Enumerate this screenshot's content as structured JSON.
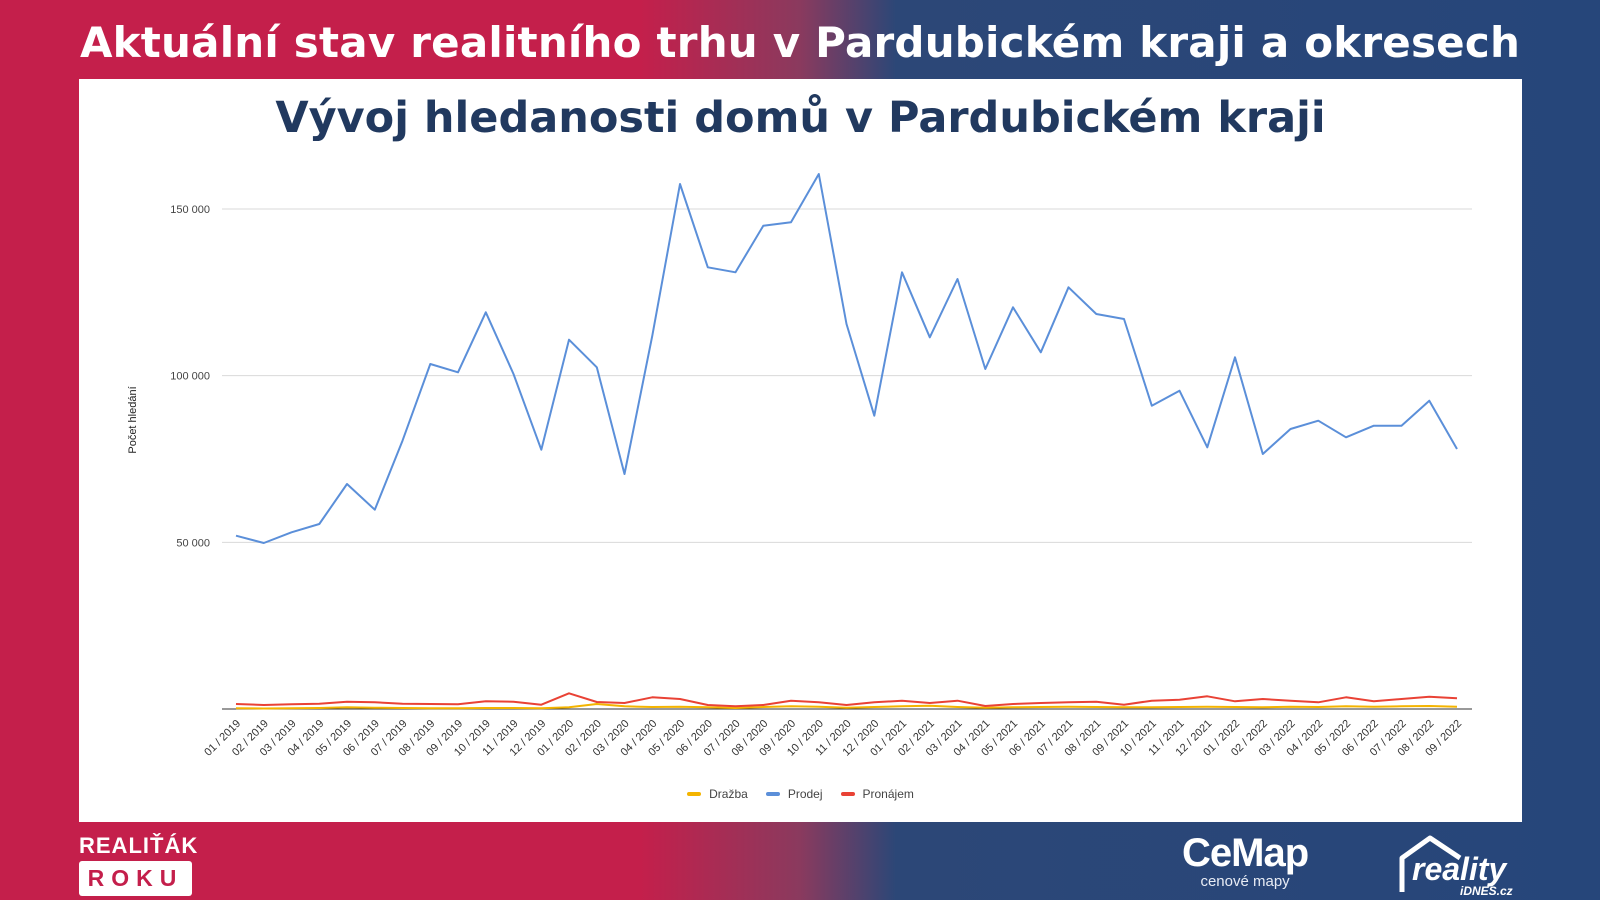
{
  "banner": {
    "title": "Aktuální stav realitního trhu v Pardubickém kraji a okresech"
  },
  "chart_data": {
    "type": "line",
    "title": "Vývoj hledanosti domů v Pardubickém kraji",
    "xlabel": "",
    "ylabel": "Počet hledání",
    "ylim": [
      0,
      165000
    ],
    "yticks": [
      50000,
      100000,
      150000
    ],
    "ytick_labels": [
      "50 000",
      "100 000",
      "150 000"
    ],
    "grid": true,
    "legend_position": "bottom",
    "categories": [
      "01 / 2019",
      "02 / 2019",
      "03 / 2019",
      "04 / 2019",
      "05 / 2019",
      "06 / 2019",
      "07 / 2019",
      "08 / 2019",
      "09 / 2019",
      "10 / 2019",
      "11 / 2019",
      "12 / 2019",
      "01 / 2020",
      "02 / 2020",
      "03 / 2020",
      "04 / 2020",
      "05 / 2020",
      "06 / 2020",
      "07 / 2020",
      "08 / 2020",
      "09 / 2020",
      "10 / 2020",
      "11 / 2020",
      "12 / 2020",
      "01 / 2021",
      "02 / 2021",
      "03 / 2021",
      "04 / 2021",
      "05 / 2021",
      "06 / 2021",
      "07 / 2021",
      "08 / 2021",
      "09 / 2021",
      "10 / 2021",
      "11 / 2021",
      "12 / 2021",
      "01 / 2022",
      "02 / 2022",
      "03 / 2022",
      "04 / 2022",
      "05 / 2022",
      "06 / 2022",
      "07 / 2022",
      "08 / 2022",
      "09 / 2022"
    ],
    "series": [
      {
        "name": "Dražba",
        "color": "#f4b400",
        "values": [
          200,
          150,
          200,
          300,
          500,
          400,
          300,
          200,
          250,
          300,
          300,
          250,
          500,
          1500,
          800,
          600,
          700,
          500,
          300,
          600,
          800,
          700,
          400,
          600,
          800,
          1000,
          600,
          400,
          500,
          600,
          700,
          600,
          500,
          500,
          600,
          700,
          600,
          500,
          700,
          600,
          800,
          700,
          800,
          900,
          700
        ]
      },
      {
        "name": "Prodej",
        "color": "#5b8fd9",
        "values": [
          52000,
          49800,
          53000,
          55500,
          67500,
          59800,
          80500,
          103500,
          101000,
          119000,
          100500,
          77800,
          110800,
          102500,
          70500,
          112000,
          157500,
          132500,
          131000,
          145000,
          146000,
          160500,
          115500,
          88000,
          131000,
          111500,
          129000,
          102000,
          120500,
          107000,
          126500,
          118500,
          117000,
          91000,
          95500,
          78500,
          105500,
          76500,
          84000,
          86500,
          81500,
          85000,
          85000,
          92500,
          78000
        ]
      },
      {
        "name": "Pronájem",
        "color": "#e94235",
        "values": [
          1500,
          1200,
          1400,
          1600,
          2200,
          2000,
          1600,
          1500,
          1400,
          2300,
          2200,
          1300,
          4700,
          2100,
          1800,
          3500,
          3000,
          1200,
          800,
          1200,
          2500,
          2000,
          1200,
          2000,
          2500,
          1800,
          2500,
          900,
          1500,
          1800,
          2000,
          2200,
          1300,
          2500,
          2800,
          3800,
          2300,
          3000,
          2500,
          2000,
          3500,
          2300,
          3000,
          3700,
          3200
        ]
      }
    ]
  },
  "footer": {
    "realitak_top": "REALIŤÁK",
    "realitak_bottom": "ROKU",
    "cemap_name": "CeMap",
    "cemap_sub": "cenové mapy",
    "reality_name": "reality",
    "reality_sub": "iDNES.cz"
  }
}
